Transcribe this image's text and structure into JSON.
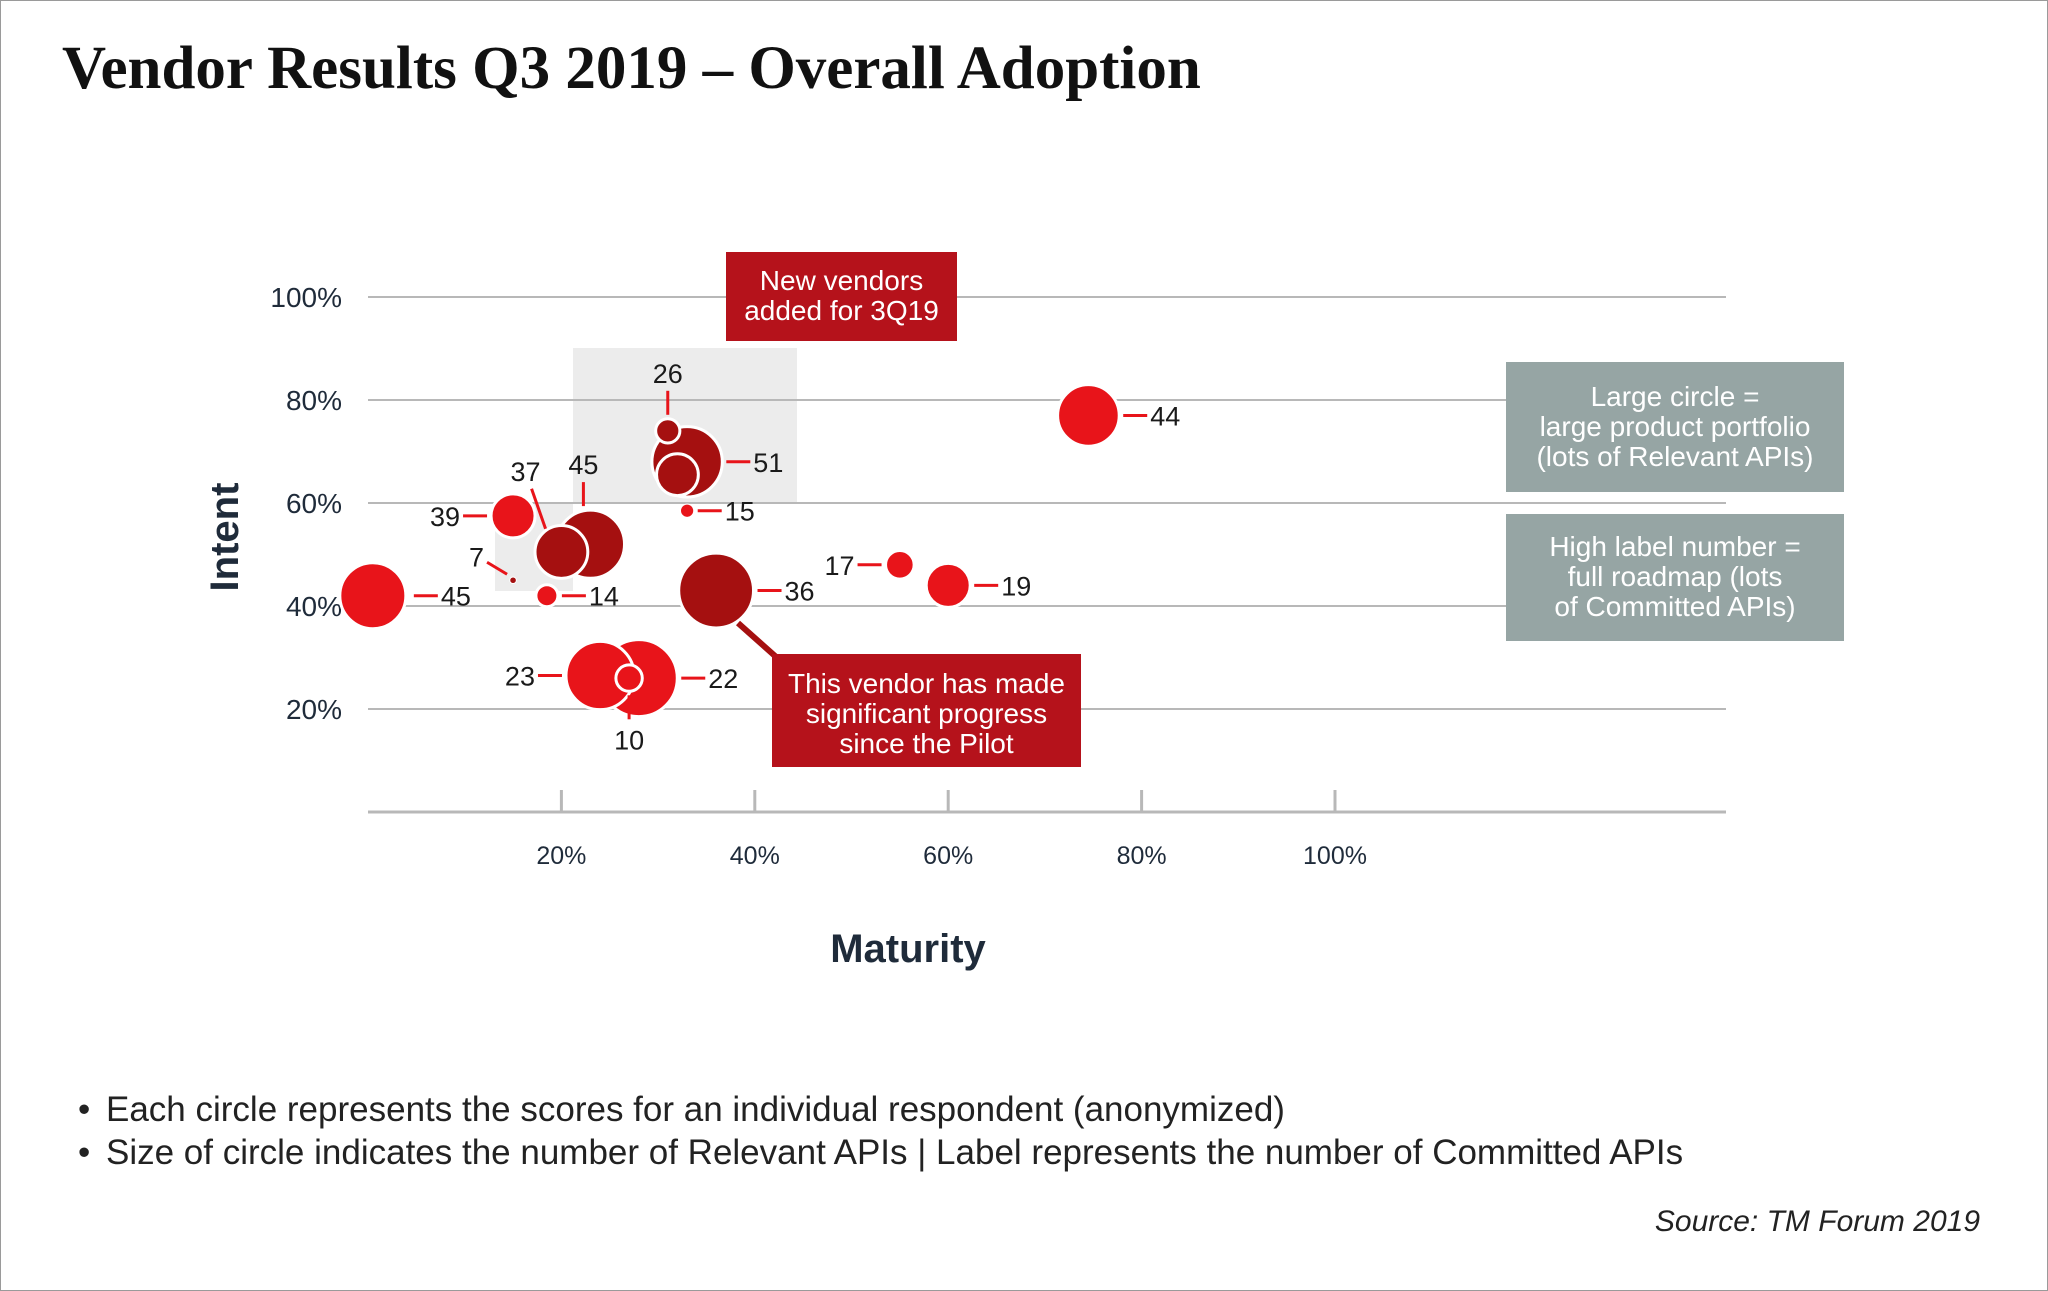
{
  "title": "Vendor Results Q3 2019 – Overall Adoption",
  "notes": [
    "Each circle represents the scores for an individual respondent (anonymized)",
    "Size of circle indicates the number of Relevant APIs | Label represents the number of Committed APIs"
  ],
  "source": "Source: TM Forum 2019",
  "colors": {
    "bright_red": "#e8141a",
    "dark_red": "#a51010",
    "callout_red": "#b5121b",
    "callout_gray": "#96a5a4",
    "highlight_box": "#ececec",
    "gridline": "#b8b8b8",
    "axis_text": "#1f2b3a"
  },
  "chart_data": {
    "type": "scatter",
    "title": "Vendor Results Q3 2019 – Overall Adoption",
    "xlabel": "Maturity",
    "ylabel": "Intent",
    "xlim": [
      0,
      140
    ],
    "ylim": [
      0,
      100
    ],
    "x_ticks": [
      20,
      40,
      60,
      80,
      100
    ],
    "x_tick_labels": [
      "20%",
      "40%",
      "60%",
      "80%",
      "100%"
    ],
    "y_ticks": [
      20,
      40,
      60,
      80,
      100
    ],
    "y_tick_labels": [
      "20%",
      "40%",
      "60%",
      "80%",
      "100%"
    ],
    "grid": true,
    "size_meaning": "number of Relevant APIs (relative)",
    "label_meaning": "number of Committed APIs",
    "points": [
      {
        "label": "44",
        "x": 74.5,
        "y": 77,
        "size": 28,
        "color": "bright_red"
      },
      {
        "label": "26",
        "x": 31,
        "y": 74,
        "size": 11,
        "color": "dark_red"
      },
      {
        "label": "51",
        "x": 33,
        "y": 68,
        "size": 32,
        "color": "dark_red"
      },
      {
        "label": "",
        "x": 32,
        "y": 65.5,
        "size": 19,
        "color": "dark_red"
      },
      {
        "label": "15",
        "x": 33,
        "y": 58.5,
        "size": 6,
        "color": "bright_red"
      },
      {
        "label": "39",
        "x": 15,
        "y": 57.5,
        "size": 20,
        "color": "bright_red"
      },
      {
        "label": "45",
        "x": 23,
        "y": 52,
        "size": 31,
        "color": "dark_red"
      },
      {
        "label": "37",
        "x": 20,
        "y": 50.5,
        "size": 24,
        "color": "dark_red"
      },
      {
        "label": "7",
        "x": 15,
        "y": 45,
        "size": 3,
        "color": "dark_red"
      },
      {
        "label": "14",
        "x": 18.5,
        "y": 42,
        "size": 10,
        "color": "bright_red"
      },
      {
        "label": "45",
        "x": 0.5,
        "y": 42,
        "size": 30,
        "color": "bright_red"
      },
      {
        "label": "36",
        "x": 36,
        "y": 43,
        "size": 34,
        "color": "dark_red"
      },
      {
        "label": "17",
        "x": 55,
        "y": 48,
        "size": 13,
        "color": "bright_red"
      },
      {
        "label": "19",
        "x": 60,
        "y": 44,
        "size": 20,
        "color": "bright_red"
      },
      {
        "label": "23",
        "x": 24,
        "y": 26.5,
        "size": 31,
        "color": "bright_red"
      },
      {
        "label": "22",
        "x": 28,
        "y": 26,
        "size": 35,
        "color": "bright_red"
      },
      {
        "label": "10",
        "x": 27,
        "y": 26,
        "size": 12,
        "color": "bright_red"
      }
    ],
    "annotations": [
      {
        "text": "New vendors added for 3Q19",
        "style": "red-callout"
      },
      {
        "text": "This vendor has made significant progress since the Pilot",
        "style": "red-callout"
      },
      {
        "text": "Large circle = large product portfolio (lots of Relevant APIs)",
        "style": "gray-callout"
      },
      {
        "text": "High label number = full roadmap (lots of Committed APIs)",
        "style": "gray-callout"
      }
    ]
  }
}
